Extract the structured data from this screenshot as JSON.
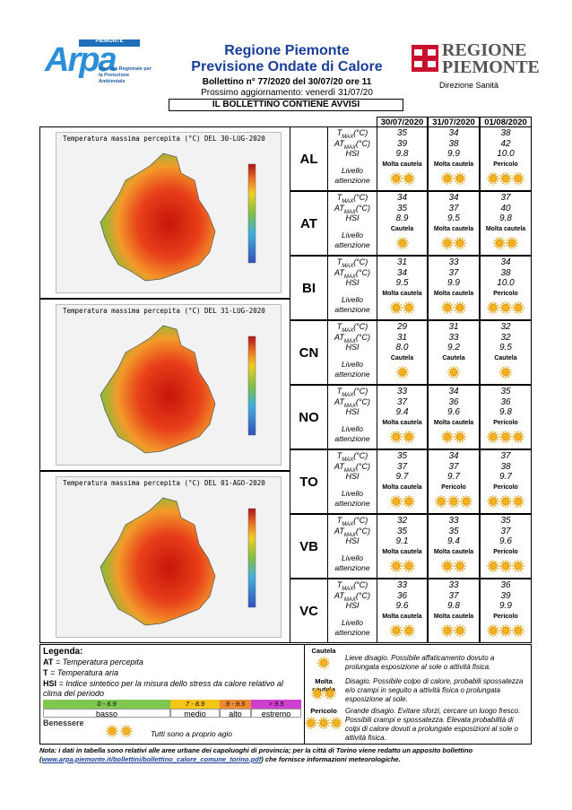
{
  "header": {
    "arpa_logo_top": "PIEMONTE",
    "arpa_logo": "Arpa",
    "arpa_logo_sub": "Agenzia Regionale per la Protezione Ambientale",
    "title": "Regione Piemonte",
    "subtitle": "Previsione Ondate di Calore",
    "bulletin": "Bollettino n° 77/2020 del 30/07/20 ore 11",
    "next_update": "Prossimo aggiornamento: venerdì 31/07/20",
    "region_logo_1": "REGIONE",
    "region_logo_2": "PIEMONTE",
    "department": "Direzione Sanità",
    "notice": "IL BOLLETTINO CONTIENE AVVISI"
  },
  "table": {
    "dates": [
      "30/07/2020",
      "31/07/2020",
      "01/08/2020"
    ],
    "maps": [
      "Temperatura massima percepita (°C) DEL 30-LUG-2020",
      "Temperatura massima percepita (°C) DEL 31-LUG-2020",
      "Temperatura massima percepita (°C) DEL 01-AGO-2020"
    ],
    "row_labels": [
      {
        "main": "T",
        "sub": "MAX",
        "unit": "(°C)"
      },
      {
        "main": "AT",
        "sub": "MAX",
        "unit": "(°C)"
      },
      {
        "main": "HSI"
      }
    ],
    "level_label": "Livello attenzione",
    "provinces": [
      {
        "code": "AL",
        "T": [
          "35",
          "34",
          "38"
        ],
        "AT": [
          "39",
          "38",
          "42"
        ],
        "HSI": [
          "9.8",
          "9.9",
          "10.0"
        ],
        "level": [
          "Molta cautela",
          "Molta cautela",
          "Pericolo"
        ]
      },
      {
        "code": "AT",
        "T": [
          "34",
          "34",
          "37"
        ],
        "AT": [
          "35",
          "37",
          "40"
        ],
        "HSI": [
          "8.9",
          "9.5",
          "9.8"
        ],
        "level": [
          "Cautela",
          "Molta cautela",
          "Molta cautela"
        ]
      },
      {
        "code": "BI",
        "T": [
          "31",
          "33",
          "34"
        ],
        "AT": [
          "34",
          "37",
          "38"
        ],
        "HSI": [
          "9.5",
          "9.9",
          "10.0"
        ],
        "level": [
          "Molta cautela",
          "Molta cautela",
          "Pericolo"
        ]
      },
      {
        "code": "CN",
        "T": [
          "29",
          "31",
          "32"
        ],
        "AT": [
          "31",
          "33",
          "32"
        ],
        "HSI": [
          "8.0",
          "9.2",
          "9.5"
        ],
        "level": [
          "Cautela",
          "Cautela",
          "Cautela"
        ]
      },
      {
        "code": "NO",
        "T": [
          "33",
          "34",
          "35"
        ],
        "AT": [
          "37",
          "36",
          "36"
        ],
        "HSI": [
          "9.4",
          "9.6",
          "9.8"
        ],
        "level": [
          "Molta cautela",
          "Molta cautela",
          "Pericolo"
        ]
      },
      {
        "code": "TO",
        "T": [
          "35",
          "34",
          "37"
        ],
        "AT": [
          "37",
          "37",
          "38"
        ],
        "HSI": [
          "9.7",
          "9.7",
          "9.7"
        ],
        "level": [
          "Molta cautela",
          "Pericolo",
          "Pericolo"
        ]
      },
      {
        "code": "VB",
        "T": [
          "32",
          "33",
          "35"
        ],
        "AT": [
          "35",
          "35",
          "37"
        ],
        "HSI": [
          "9.1",
          "9.4",
          "9.6"
        ],
        "level": [
          "Molta cautela",
          "Molta cautela",
          "Pericolo"
        ]
      },
      {
        "code": "VC",
        "T": [
          "33",
          "33",
          "36"
        ],
        "AT": [
          "36",
          "37",
          "39"
        ],
        "HSI": [
          "9.6",
          "9.8",
          "9.9"
        ],
        "level": [
          "Molta cautela",
          "Molta cautela",
          "Pericolo"
        ]
      }
    ]
  },
  "legend": {
    "title": "Legenda:",
    "at": "AT",
    "at_desc": "= Temperatura percepita",
    "t": "T",
    "t_desc": "= Temperatura aria",
    "hsi": "HSI",
    "hsi_desc": "= Indice sintetico per la misura dello stress da calore relativo al clima del periodo",
    "scale": [
      {
        "range": "0 - 6.9",
        "name": "basso"
      },
      {
        "range": "7 - 8.9",
        "name": "medio"
      },
      {
        "range": "9 - 9.5",
        "name": "alto"
      },
      {
        "range": "> 9.5",
        "name": "estremo"
      }
    ],
    "wellbeing": "Benessere",
    "wellbeing_desc": "Tutti sono a proprio agio",
    "levels": [
      {
        "name": "Cautela",
        "desc": "Lieve disagio. Possibile affaticamento dovuto a prolungata esposizione al sole o attività fisica."
      },
      {
        "name": "Molta cautela",
        "desc": "Disagio. Possibile colpo di calore, probabili spossatezza e/o crampi in seguito a  attività fisica o prolungata esposizione al sole."
      },
      {
        "name": "Pericolo",
        "desc": "Grande disagio. Evitare sforzi, cercare un luogo fresco. Possibili crampi e spossatezza. Elevata probabilità di colpi di calore dovuti a prolungate esposizioni al sole o attività fisica."
      }
    ]
  },
  "note": {
    "text": "Nota: i dati in tabella sono relativi alle aree urbane dei capoluoghi di provincia; per la città di Torino viene redatto un apposito bollettino (",
    "link": "www.arpa.piemonte.it/bollettini/bollettino_calore_comune_torino.pdf",
    "text_end": ") che fornisce informazioni meteorologiche."
  }
}
